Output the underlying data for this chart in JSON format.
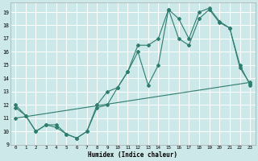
{
  "xlabel": "Humidex (Indice chaleur)",
  "bg_color": "#cce8e8",
  "grid_color": "#ffffff",
  "line_color": "#2e7d6e",
  "xlim": [
    -0.5,
    23.5
  ],
  "ylim": [
    9.0,
    19.7
  ],
  "xticks": [
    0,
    1,
    2,
    3,
    4,
    5,
    6,
    7,
    8,
    9,
    10,
    11,
    12,
    13,
    14,
    15,
    16,
    17,
    18,
    19,
    20,
    21,
    22,
    23
  ],
  "yticks": [
    9,
    10,
    11,
    12,
    13,
    14,
    15,
    16,
    17,
    18,
    19
  ],
  "line1_x": [
    0,
    1,
    2,
    3,
    4,
    5,
    6,
    7,
    8,
    9,
    10,
    11,
    12,
    13,
    14,
    15,
    16,
    17,
    18,
    19,
    20,
    21,
    22,
    23
  ],
  "line1_y": [
    12.0,
    11.2,
    10.0,
    10.5,
    10.5,
    9.8,
    9.5,
    10.0,
    12.0,
    13.0,
    13.3,
    14.5,
    16.0,
    13.5,
    15.0,
    19.2,
    17.0,
    16.5,
    18.5,
    19.2,
    18.2,
    17.8,
    15.0,
    13.5
  ],
  "line2_x": [
    0,
    1,
    2,
    3,
    4,
    5,
    6,
    7,
    8,
    9,
    10,
    11,
    12,
    13,
    14,
    15,
    16,
    17,
    18,
    19,
    20,
    21,
    22,
    23
  ],
  "line2_y": [
    11.8,
    11.2,
    10.0,
    10.5,
    10.3,
    9.8,
    9.5,
    10.0,
    11.8,
    12.0,
    13.3,
    14.5,
    16.5,
    16.5,
    17.0,
    19.2,
    18.5,
    17.0,
    19.0,
    19.3,
    18.3,
    17.8,
    14.8,
    13.6
  ],
  "line3_x": [
    0,
    23
  ],
  "line3_y": [
    11.0,
    13.7
  ]
}
